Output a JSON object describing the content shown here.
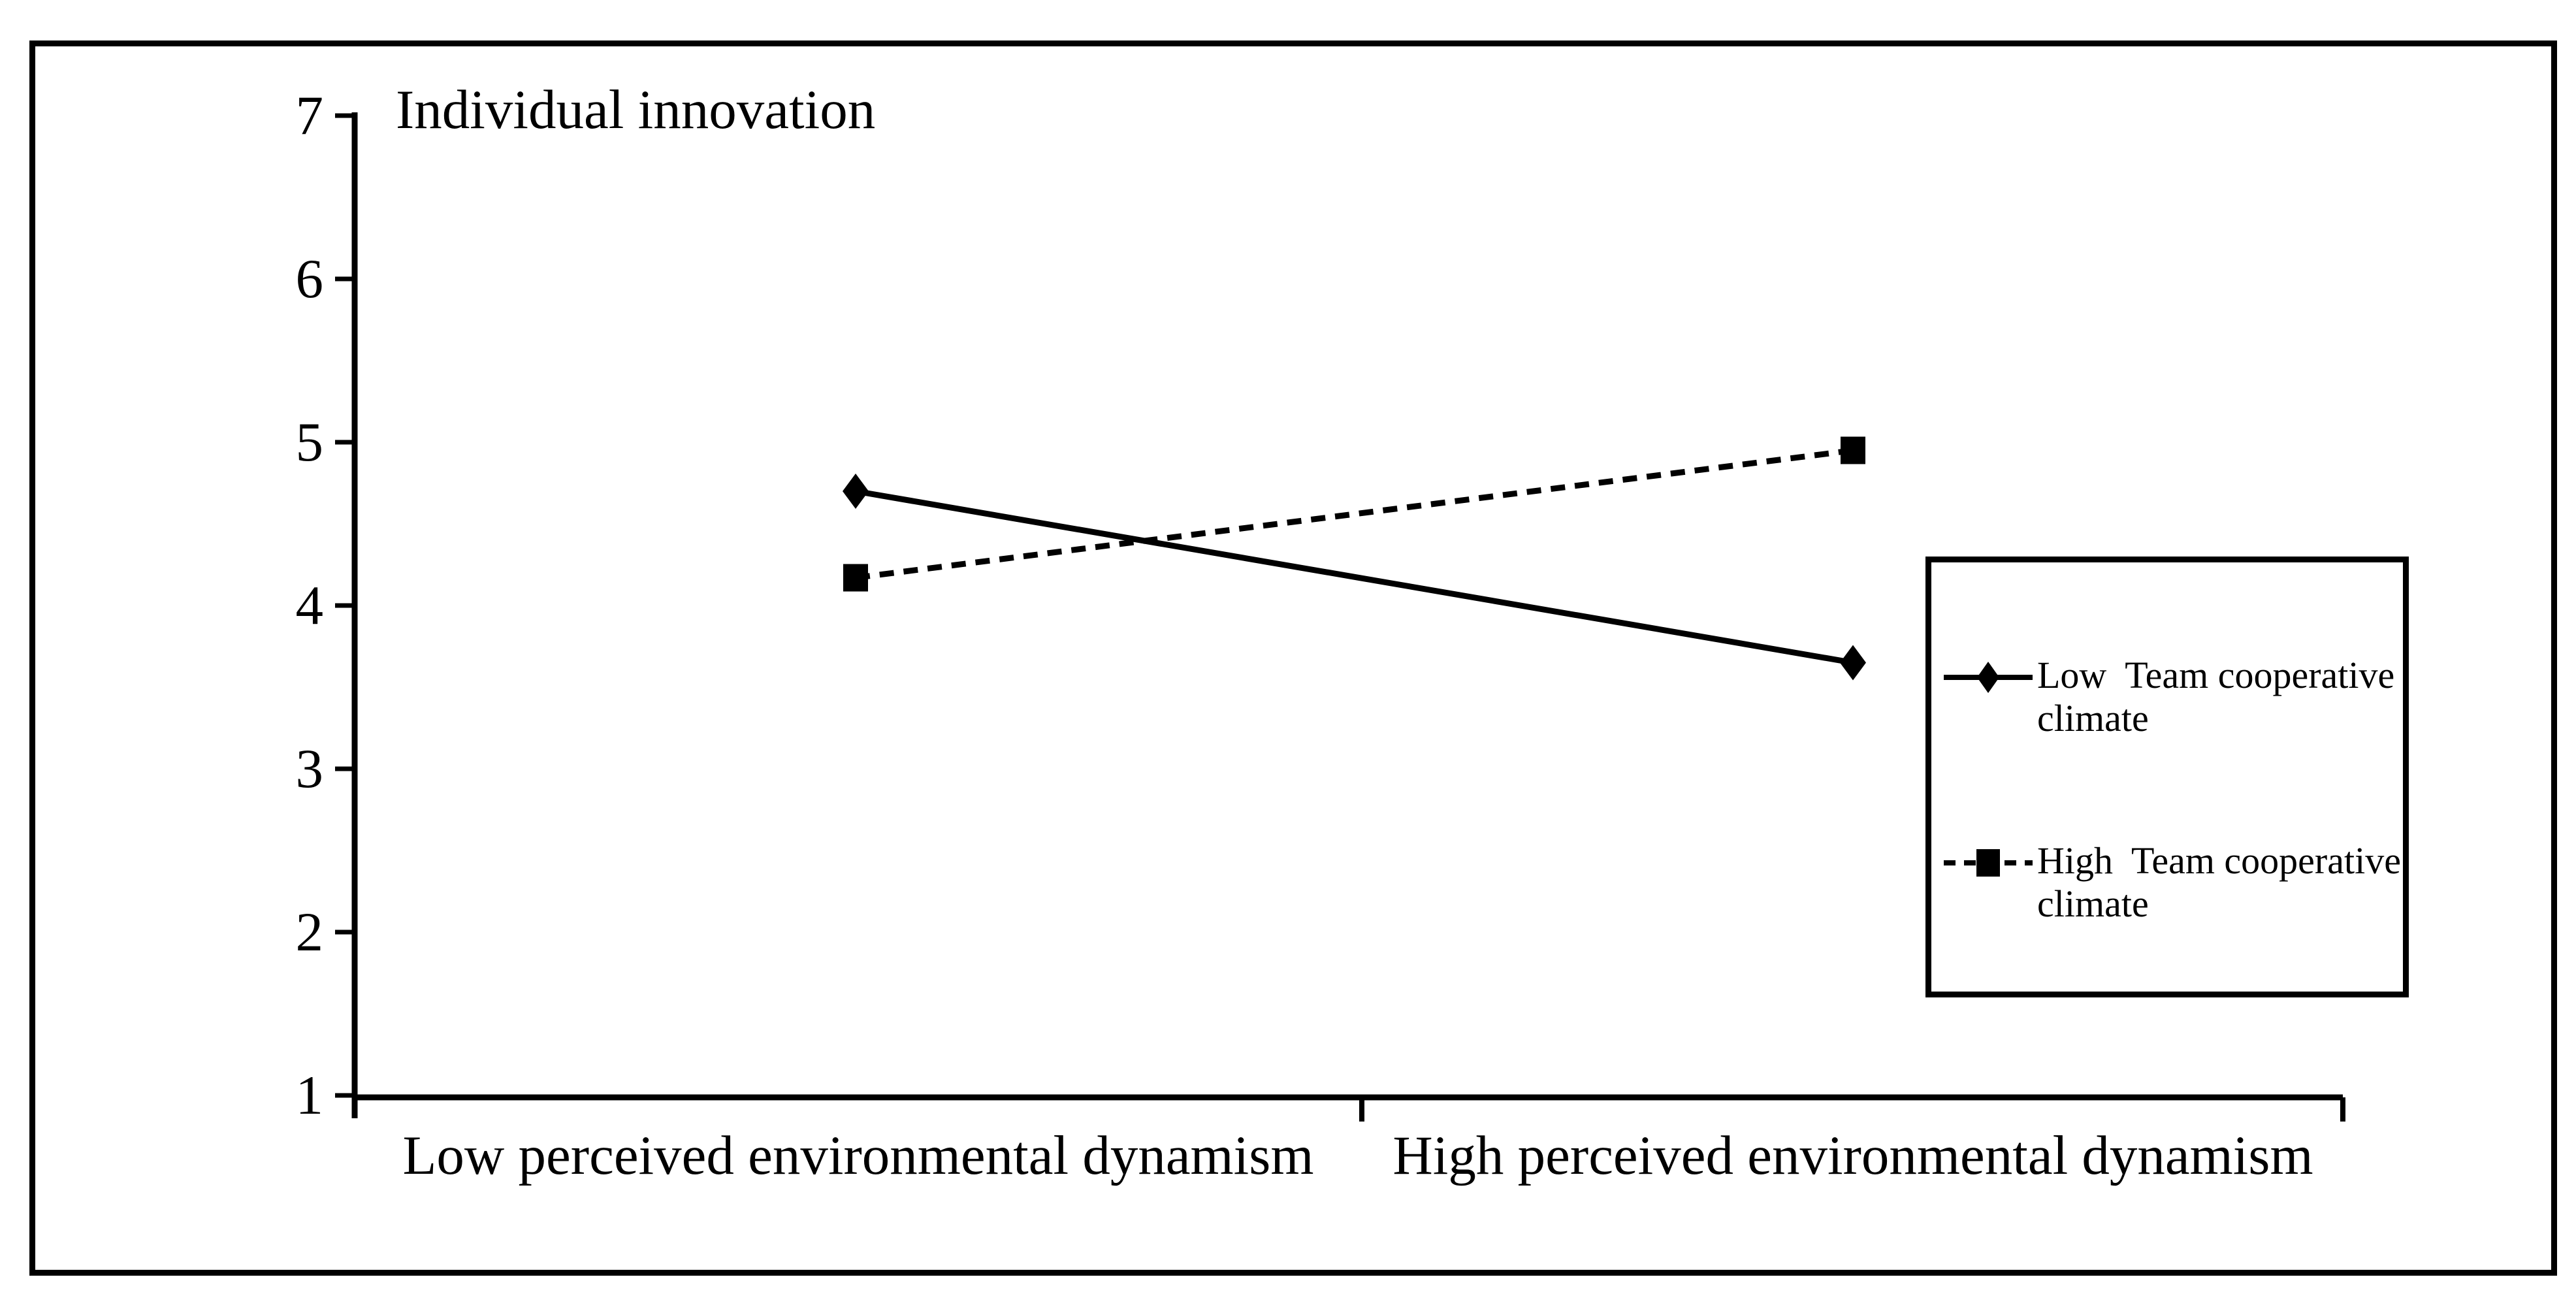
{
  "figure": {
    "background": "#ffffff",
    "ink_color": "#000000"
  },
  "chart_data": {
    "type": "line",
    "title": "Individual innovation",
    "categories": [
      "Low perceived environmental dynamism",
      "High perceived environmental dynamism"
    ],
    "series": [
      {
        "name": "Low Team cooperative climate",
        "legend_label": "Low  Team cooperative\nclimate",
        "values": [
          4.7,
          3.65
        ],
        "line_style": "solid",
        "marker": "diamond"
      },
      {
        "name": "High Team cooperative climate",
        "legend_label": "High  Team cooperative\nclimate",
        "values": [
          4.17,
          4.95
        ],
        "line_style": "dashed",
        "marker": "square"
      }
    ],
    "ylim": [
      1,
      7
    ],
    "yticks": [
      1,
      2,
      3,
      4,
      5,
      6,
      7
    ],
    "xlabel": "",
    "ylabel": "Individual innovation",
    "grid": false,
    "legend_position": "right",
    "color": "#000000"
  }
}
